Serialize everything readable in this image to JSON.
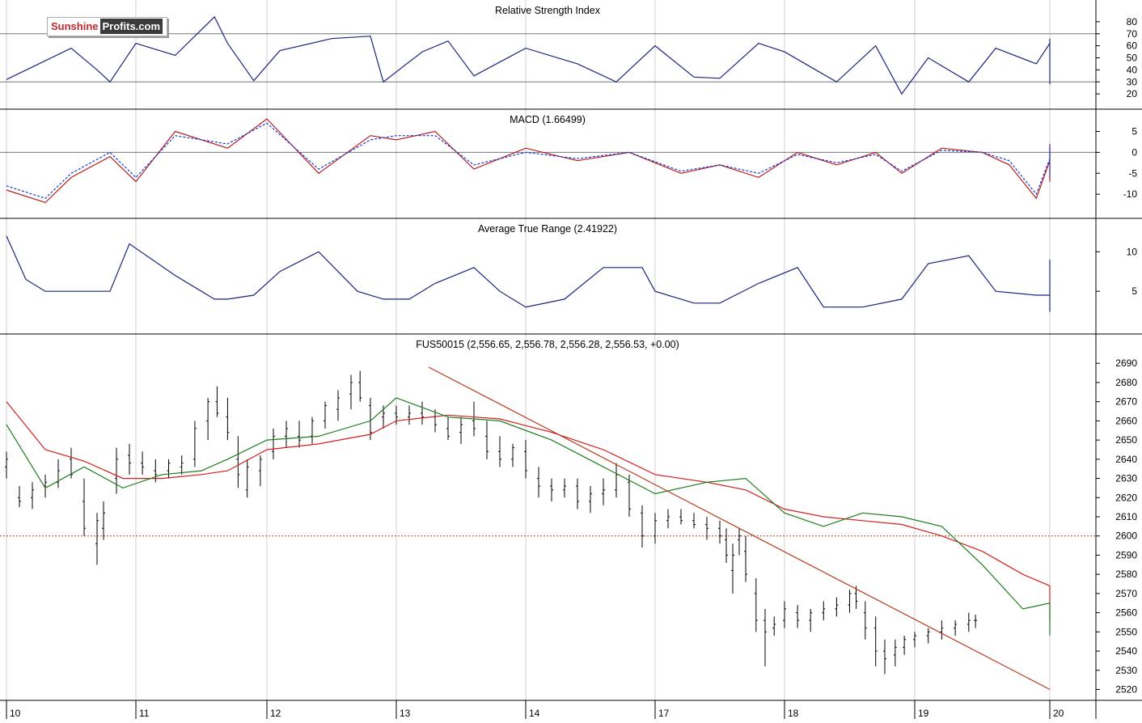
{
  "branding": {
    "logo_part1": "Sunshine",
    "logo_part2": "Profits.com"
  },
  "colors": {
    "background": "#ffffff",
    "frame": "#000000",
    "gridline": "#cfcfcf",
    "rsi_line": "#1a237e",
    "macd_line": "#b71c1c",
    "macd_signal": "#1a3bd4",
    "atr_line": "#1a237e",
    "price_bars": "#000000",
    "ma_fast": "#1e7d1e",
    "ma_slow": "#d41f1f",
    "trendline": "#b83a1a",
    "support_line": "#b83a1a"
  },
  "x_axis": {
    "labels": [
      "10",
      "11",
      "12",
      "13",
      "14",
      "17",
      "18",
      "19",
      "20"
    ]
  },
  "chart_data": [
    {
      "type": "line",
      "panel": "rsi",
      "title": "Relative Strength Index",
      "ylim": [
        10,
        90
      ],
      "ticks": [
        20,
        30,
        40,
        50,
        60,
        70,
        80
      ],
      "reference_lines": [
        30,
        70
      ],
      "x": [
        10,
        10.5,
        10.7,
        10.8,
        11.0,
        11.3,
        11.6,
        11.7,
        11.9,
        12.1,
        12.5,
        12.8,
        12.9,
        13.2,
        13.4,
        13.6,
        14.0,
        14.4,
        14.7,
        15.0,
        15.3,
        15.5,
        15.8,
        16.0,
        16.4,
        16.7,
        16.9,
        17.1,
        17.4,
        17.6,
        17.9,
        18.1,
        18.4,
        18.7,
        18.9,
        19.0,
        19.3,
        19.5
      ],
      "values": [
        32,
        58,
        40,
        30,
        62,
        52,
        84,
        62,
        31,
        56,
        66,
        68,
        30,
        55,
        64,
        35,
        58,
        45,
        30,
        60,
        34,
        33,
        62,
        55,
        30,
        60,
        20,
        50,
        30,
        58,
        45,
        62,
        66,
        40,
        28,
        38,
        58,
        60
      ]
    },
    {
      "type": "line",
      "panel": "macd",
      "title": "MACD (1.66499)",
      "ylim": [
        -15,
        8
      ],
      "ticks": [
        5,
        0,
        -5,
        -10
      ],
      "reference_lines": [
        0
      ],
      "series": [
        {
          "x": [
            10,
            10.3,
            10.5,
            10.8,
            11.0,
            11.3,
            11.7,
            12.0,
            12.4,
            12.8,
            13.0,
            13.3,
            13.6,
            14.0,
            14.4,
            14.8,
            15.2,
            15.5,
            15.8,
            16.1,
            16.4,
            16.7,
            16.9,
            17.2,
            17.5,
            17.7,
            17.9,
            18.2,
            18.6,
            18.8,
            19.0,
            19.5
          ],
          "values": [
            -9,
            -12,
            -6,
            -1,
            -7,
            5,
            1,
            8,
            -5,
            4,
            3,
            5,
            -4,
            1,
            -2,
            0,
            -5,
            -3,
            -6,
            0,
            -3,
            0,
            -5,
            1,
            0,
            -3,
            -11,
            -2,
            2,
            1,
            -7,
            1.7
          ]
        },
        {
          "x": [
            10,
            10.3,
            10.5,
            10.8,
            11.0,
            11.3,
            11.7,
            12.0,
            12.4,
            12.8,
            13.0,
            13.3,
            13.6,
            14.0,
            14.4,
            14.8,
            15.2,
            15.5,
            15.8,
            16.1,
            16.4,
            16.7,
            16.9,
            17.2,
            17.5,
            17.7,
            17.9,
            18.2,
            18.6,
            18.8,
            19.0,
            19.5
          ],
          "values": [
            -8,
            -11,
            -5,
            0,
            -6,
            4,
            2,
            7,
            -4,
            3,
            4,
            4,
            -3,
            0,
            -1.5,
            0,
            -4.5,
            -3,
            -5,
            -0.5,
            -2.5,
            -0.5,
            -4.5,
            0.5,
            0,
            -2,
            -10,
            -1.5,
            1.5,
            1.5,
            -6,
            1.2
          ]
        }
      ]
    },
    {
      "type": "line",
      "panel": "atr",
      "title": "Average True Range (2.41922)",
      "ylim": [
        0,
        13
      ],
      "ticks": [
        10,
        5
      ],
      "x": [
        10,
        10.15,
        10.3,
        10.6,
        10.8,
        10.95,
        11.3,
        11.6,
        11.7,
        11.9,
        12.1,
        12.4,
        12.7,
        12.9,
        13.1,
        13.3,
        13.6,
        13.8,
        14.0,
        14.3,
        14.6,
        14.9,
        15.0,
        15.3,
        15.5,
        15.8,
        16.1,
        16.3,
        16.6,
        16.9,
        17.1,
        17.4,
        17.6,
        17.9,
        18.1,
        18.4,
        18.6,
        18.9,
        19.1,
        19.4,
        19.5
      ],
      "values": [
        12,
        6.5,
        5,
        5,
        5,
        11,
        7,
        4,
        4,
        4.5,
        7.5,
        10,
        5,
        4,
        4,
        6,
        8,
        5,
        3,
        4,
        8,
        8,
        5,
        3.5,
        3.5,
        6,
        8,
        3,
        3,
        4,
        8.5,
        9.5,
        5,
        4.5,
        4.5,
        9,
        6,
        3,
        3,
        2.8,
        2.4
      ]
    },
    {
      "type": "candlestick",
      "panel": "price",
      "title": "FUS50015 (2,556.65, 2,556.78, 2,556.28, 2,556.53, +0.00)",
      "ylim": [
        2516,
        2696
      ],
      "ticks": [
        2690,
        2680,
        2670,
        2660,
        2650,
        2640,
        2630,
        2620,
        2610,
        2600,
        2590,
        2580,
        2570,
        2560,
        2550,
        2540,
        2530,
        2520
      ],
      "horizontal_line": 2600,
      "trendline": {
        "x": [
          13.25,
          20.1
        ],
        "y": [
          2688,
          2520
        ]
      },
      "ma_fast": {
        "x": [
          10,
          10.3,
          10.6,
          10.9,
          11.2,
          11.5,
          11.7,
          12.0,
          12.4,
          12.8,
          13.0,
          13.4,
          13.8,
          14.2,
          14.6,
          15.0,
          15.4,
          15.7,
          16.0,
          16.3,
          16.6,
          16.9,
          17.2,
          17.5,
          17.8,
          18.0,
          18.3,
          18.6,
          18.9,
          19.1,
          19.5
        ],
        "values": [
          2658,
          2625,
          2636,
          2625,
          2632,
          2634,
          2640,
          2650,
          2652,
          2660,
          2672,
          2662,
          2660,
          2650,
          2636,
          2622,
          2628,
          2630,
          2612,
          2605,
          2612,
          2610,
          2605,
          2585,
          2562,
          2565,
          2556,
          2563,
          2562,
          2548,
          2553
        ]
      },
      "ma_slow": {
        "x": [
          10,
          10.3,
          10.6,
          10.9,
          11.2,
          11.5,
          11.7,
          12.0,
          12.4,
          12.8,
          13.0,
          13.4,
          13.8,
          14.2,
          14.6,
          15.0,
          15.4,
          15.7,
          16.0,
          16.3,
          16.6,
          16.9,
          17.2,
          17.5,
          17.8,
          18.0,
          18.3,
          18.6,
          18.9,
          19.1,
          19.5
        ],
        "values": [
          2670,
          2645,
          2639,
          2630,
          2630,
          2632,
          2634,
          2645,
          2648,
          2653,
          2660,
          2663,
          2661,
          2654,
          2645,
          2632,
          2628,
          2624,
          2614,
          2610,
          2608,
          2606,
          2600,
          2592,
          2580,
          2574,
          2568,
          2566,
          2560,
          2556,
          2556
        ]
      },
      "ohlc": [
        [
          10.0,
          2636,
          2644,
          2630,
          2640
        ],
        [
          10.1,
          2620,
          2626,
          2615,
          2618
        ],
        [
          10.2,
          2620,
          2628,
          2614,
          2624
        ],
        [
          10.3,
          2626,
          2632,
          2620,
          2628
        ],
        [
          10.4,
          2628,
          2640,
          2625,
          2634
        ],
        [
          10.5,
          2640,
          2646,
          2630,
          2632
        ],
        [
          10.6,
          2618,
          2630,
          2600,
          2604
        ],
        [
          10.7,
          2596,
          2612,
          2585,
          2608
        ],
        [
          10.75,
          2604,
          2618,
          2598,
          2612
        ],
        [
          10.85,
          2630,
          2646,
          2622,
          2640
        ],
        [
          10.95,
          2642,
          2648,
          2632,
          2638
        ],
        [
          11.05,
          2638,
          2644,
          2632,
          2636
        ],
        [
          11.15,
          2634,
          2640,
          2628,
          2632
        ],
        [
          11.25,
          2634,
          2640,
          2630,
          2638
        ],
        [
          11.35,
          2636,
          2642,
          2632,
          2638
        ],
        [
          11.45,
          2640,
          2660,
          2636,
          2656
        ],
        [
          11.55,
          2660,
          2672,
          2650,
          2670
        ],
        [
          11.62,
          2670,
          2678,
          2662,
          2664
        ],
        [
          11.7,
          2662,
          2672,
          2650,
          2654
        ],
        [
          11.78,
          2640,
          2652,
          2625,
          2632
        ],
        [
          11.85,
          2624,
          2640,
          2620,
          2636
        ],
        [
          11.95,
          2634,
          2642,
          2626,
          2640
        ],
        [
          12.05,
          2644,
          2656,
          2640,
          2652
        ],
        [
          12.15,
          2652,
          2660,
          2646,
          2656
        ],
        [
          12.25,
          2652,
          2660,
          2646,
          2650
        ],
        [
          12.35,
          2652,
          2662,
          2648,
          2660
        ],
        [
          12.45,
          2660,
          2670,
          2656,
          2668
        ],
        [
          12.55,
          2666,
          2676,
          2660,
          2672
        ],
        [
          12.65,
          2674,
          2684,
          2666,
          2680
        ],
        [
          12.72,
          2680,
          2686,
          2670,
          2672
        ],
        [
          12.8,
          2668,
          2672,
          2650,
          2654
        ],
        [
          12.9,
          2662,
          2668,
          2656,
          2664
        ],
        [
          13.0,
          2664,
          2668,
          2658,
          2662
        ],
        [
          13.1,
          2662,
          2668,
          2658,
          2664
        ],
        [
          13.2,
          2664,
          2670,
          2658,
          2662
        ],
        [
          13.3,
          2662,
          2666,
          2654,
          2658
        ],
        [
          13.4,
          2656,
          2662,
          2650,
          2652
        ],
        [
          13.5,
          2654,
          2662,
          2648,
          2658
        ],
        [
          13.6,
          2660,
          2670,
          2652,
          2656
        ],
        [
          13.7,
          2652,
          2660,
          2640,
          2644
        ],
        [
          13.8,
          2644,
          2652,
          2636,
          2640
        ],
        [
          13.9,
          2640,
          2648,
          2636,
          2646
        ],
        [
          14.0,
          2644,
          2650,
          2630,
          2634
        ],
        [
          14.1,
          2630,
          2636,
          2620,
          2626
        ],
        [
          14.2,
          2626,
          2630,
          2618,
          2624
        ],
        [
          14.3,
          2624,
          2630,
          2620,
          2626
        ],
        [
          14.4,
          2626,
          2630,
          2614,
          2618
        ],
        [
          14.5,
          2618,
          2626,
          2612,
          2622
        ],
        [
          14.6,
          2622,
          2630,
          2616,
          2624
        ],
        [
          14.7,
          2624,
          2638,
          2620,
          2632
        ],
        [
          14.8,
          2628,
          2632,
          2610,
          2614
        ],
        [
          14.9,
          2612,
          2616,
          2594,
          2600
        ],
        [
          15.0,
          2600,
          2612,
          2596,
          2608
        ],
        [
          15.1,
          2608,
          2614,
          2604,
          2610
        ],
        [
          15.2,
          2610,
          2614,
          2606,
          2608
        ],
        [
          15.3,
          2608,
          2612,
          2604,
          2606
        ],
        [
          15.4,
          2606,
          2610,
          2598,
          2604
        ],
        [
          15.5,
          2604,
          2608,
          2596,
          2600
        ],
        [
          15.55,
          2598,
          2604,
          2586,
          2590
        ],
        [
          15.6,
          2582,
          2596,
          2570,
          2590
        ],
        [
          15.65,
          2598,
          2604,
          2590,
          2600
        ],
        [
          15.7,
          2592,
          2600,
          2576,
          2580
        ],
        [
          15.78,
          2570,
          2578,
          2550,
          2556
        ],
        [
          15.85,
          2556,
          2562,
          2532,
          2550
        ],
        [
          15.92,
          2552,
          2558,
          2548,
          2554
        ],
        [
          16.0,
          2556,
          2566,
          2552,
          2562
        ],
        [
          16.1,
          2560,
          2564,
          2552,
          2556
        ],
        [
          16.2,
          2556,
          2562,
          2550,
          2560
        ],
        [
          16.3,
          2560,
          2566,
          2556,
          2562
        ],
        [
          16.4,
          2562,
          2568,
          2558,
          2564
        ],
        [
          16.5,
          2564,
          2572,
          2560,
          2570
        ],
        [
          16.55,
          2570,
          2574,
          2562,
          2566
        ],
        [
          16.62,
          2560,
          2566,
          2546,
          2552
        ],
        [
          16.7,
          2552,
          2558,
          2532,
          2540
        ],
        [
          16.77,
          2540,
          2546,
          2528,
          2536
        ],
        [
          16.85,
          2538,
          2546,
          2532,
          2542
        ],
        [
          16.92,
          2542,
          2548,
          2538,
          2546
        ],
        [
          17.0,
          2546,
          2550,
          2542,
          2548
        ],
        [
          17.1,
          2548,
          2552,
          2544,
          2550
        ],
        [
          17.2,
          2550,
          2556,
          2546,
          2552
        ],
        [
          17.3,
          2552,
          2556,
          2548,
          2554
        ],
        [
          17.4,
          2554,
          2560,
          2550,
          2556
        ],
        [
          17.45,
          2556,
          2559,
          2552,
          2556
        ]
      ]
    }
  ]
}
